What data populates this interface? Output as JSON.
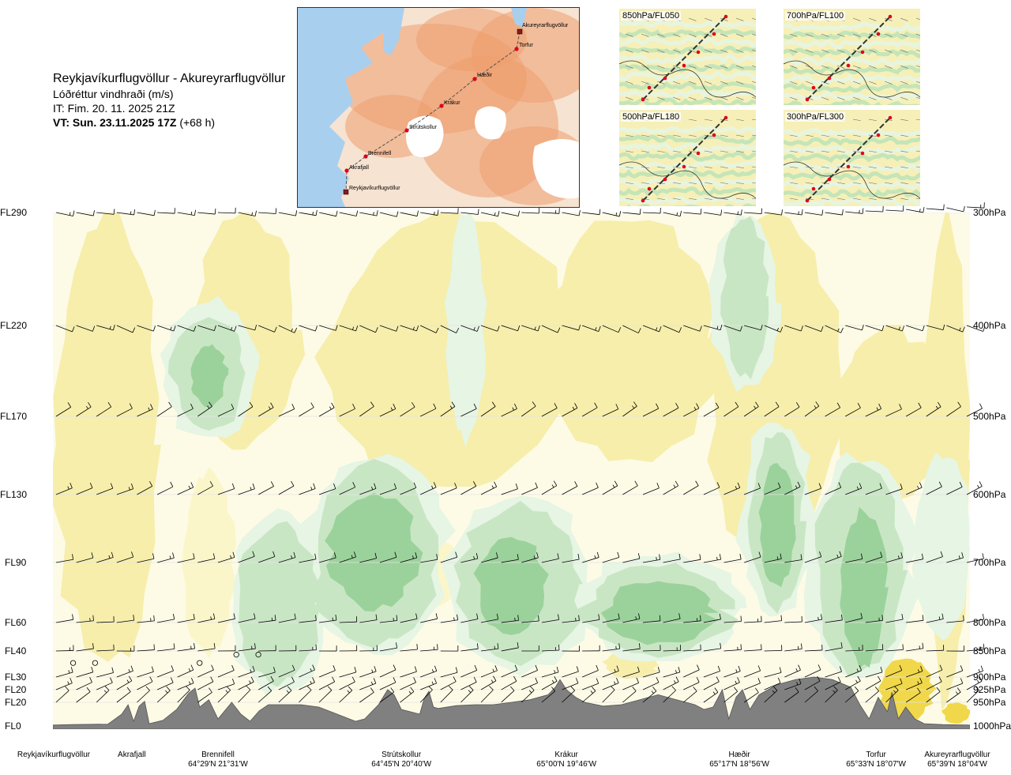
{
  "header": {
    "route": "Reykjavíkurflugvöllur - Akureyrarflugvöllur",
    "parameter": "Lóðréttur vindhraði (m/s)",
    "issue_time": "IT: Fim. 20. 11. 2025 21Z",
    "valid_time": "VT: Sun. 23.11.2025 17Z",
    "lead": "(+68 h)"
  },
  "route_map": {
    "waypoints": [
      {
        "name": "Akureyrarflugvöllur"
      },
      {
        "name": "Torfur"
      },
      {
        "name": "Hæðir"
      },
      {
        "name": "Krákur"
      },
      {
        "name": "Strútskollur"
      },
      {
        "name": "Brennifell"
      },
      {
        "name": "Akrafjall"
      },
      {
        "name": "Reykjavíkurflugvöllur"
      }
    ],
    "colors": {
      "sea": "#a9cfee",
      "land_low": "#f6e3d2",
      "land_high": "#ee9e6e",
      "glacier": "#ffffff",
      "route": "#555555",
      "point": "#e0001a",
      "airport": "#8b1a1a"
    }
  },
  "level_maps": [
    {
      "label": "850hPa/FL050"
    },
    {
      "label": "700hPa/FL100"
    },
    {
      "label": "500hPa/FL180"
    },
    {
      "label": "300hPa/FL300"
    }
  ],
  "chart_data": {
    "type": "heatmap",
    "title": "Reykjavíkurflugvöllur - Akureyrarflugvöllur",
    "subtitle": "Lóðréttur vindhraði (m/s)",
    "y_left_labels": [
      "FL290",
      "FL220",
      "FL170",
      "FL130",
      "FL90",
      "FL60",
      "FL40",
      "FL30",
      "FL20",
      "FL20",
      "FL0"
    ],
    "y_right_labels": [
      "300hPa",
      "400hPa",
      "500hPa",
      "600hPa",
      "700hPa",
      "800hPa",
      "850hPa",
      "900hPa",
      "925hPa",
      "950hPa",
      "1000hPa"
    ],
    "pressure_levels_hpa": [
      300,
      400,
      500,
      600,
      700,
      800,
      850,
      900,
      925,
      950,
      1000
    ],
    "ylim_hpa": [
      1000,
      300
    ],
    "x_points": [
      {
        "name": "Reykjavíkurflugvöllur",
        "coord": "",
        "x": 0.0
      },
      {
        "name": "Akrafjall",
        "coord": "",
        "x": 0.086
      },
      {
        "name": "Brennifell",
        "coord": "64°29'N 21°31'W",
        "x": 0.18
      },
      {
        "name": "Strútskollur",
        "coord": "64°45'N 20°40'W",
        "x": 0.38
      },
      {
        "name": "Krákur",
        "coord": "65°00'N 19°46'W",
        "x": 0.56
      },
      {
        "name": "Hæðir",
        "coord": "65°17'N 18°56'W",
        "x": 0.74
      },
      {
        "name": "Torfur",
        "coord": "65°33'N 18°07'W",
        "x": 0.92
      },
      {
        "name": "Akureyrarflugvöllur",
        "coord": "65°39'N 18°04'W",
        "x": 1.0
      }
    ],
    "xlim": [
      0,
      1
    ],
    "colors": {
      "strong_down": "#9bd29b",
      "down": "#c9e6c4",
      "weak_down": "#e6f5e4",
      "neutral": "#fdfbe6",
      "weak_up": "#fbf6c9",
      "up": "#f6eeaa",
      "strong_up": "#f0d84a",
      "terrain": "#808080",
      "barb": "#000000"
    },
    "terrain_profile_hpa": [
      [
        0.0,
        998
      ],
      [
        0.02,
        997
      ],
      [
        0.06,
        996
      ],
      [
        0.075,
        975
      ],
      [
        0.082,
        955
      ],
      [
        0.088,
        990
      ],
      [
        0.094,
        958
      ],
      [
        0.1,
        948
      ],
      [
        0.105,
        995
      ],
      [
        0.12,
        988
      ],
      [
        0.135,
        965
      ],
      [
        0.148,
        932
      ],
      [
        0.155,
        922
      ],
      [
        0.16,
        960
      ],
      [
        0.17,
        945
      ],
      [
        0.18,
        985
      ],
      [
        0.195,
        950
      ],
      [
        0.205,
        975
      ],
      [
        0.215,
        990
      ],
      [
        0.225,
        968
      ],
      [
        0.235,
        955
      ],
      [
        0.25,
        955
      ],
      [
        0.27,
        955
      ],
      [
        0.29,
        960
      ],
      [
        0.31,
        975
      ],
      [
        0.33,
        990
      ],
      [
        0.34,
        985
      ],
      [
        0.355,
        955
      ],
      [
        0.365,
        925
      ],
      [
        0.372,
        935
      ],
      [
        0.38,
        965
      ],
      [
        0.39,
        970
      ],
      [
        0.4,
        975
      ],
      [
        0.405,
        942
      ],
      [
        0.41,
        928
      ],
      [
        0.415,
        960
      ],
      [
        0.42,
        963
      ],
      [
        0.44,
        957
      ],
      [
        0.46,
        955
      ],
      [
        0.48,
        955
      ],
      [
        0.5,
        950
      ],
      [
        0.52,
        945
      ],
      [
        0.54,
        935
      ],
      [
        0.548,
        920
      ],
      [
        0.553,
        905
      ],
      [
        0.56,
        925
      ],
      [
        0.57,
        940
      ],
      [
        0.58,
        950
      ],
      [
        0.6,
        958
      ],
      [
        0.62,
        955
      ],
      [
        0.64,
        945
      ],
      [
        0.66,
        935
      ],
      [
        0.68,
        945
      ],
      [
        0.7,
        955
      ],
      [
        0.71,
        965
      ],
      [
        0.72,
        960
      ],
      [
        0.73,
        925
      ],
      [
        0.737,
        985
      ],
      [
        0.745,
        940
      ],
      [
        0.752,
        925
      ],
      [
        0.76,
        965
      ],
      [
        0.77,
        935
      ],
      [
        0.78,
        925
      ],
      [
        0.79,
        915
      ],
      [
        0.81,
        905
      ],
      [
        0.83,
        900
      ],
      [
        0.85,
        905
      ],
      [
        0.87,
        920
      ],
      [
        0.88,
        955
      ],
      [
        0.89,
        985
      ],
      [
        0.9,
        940
      ],
      [
        0.91,
        970
      ],
      [
        0.915,
        930
      ],
      [
        0.922,
        985
      ],
      [
        0.93,
        960
      ],
      [
        0.94,
        985
      ],
      [
        0.95,
        995
      ],
      [
        0.97,
        997
      ],
      [
        1.0,
        998
      ]
    ],
    "updraft_patches": [
      {
        "x": [
          0.0,
          0.12
        ],
        "p": [
          300,
          900
        ],
        "kind": "up"
      },
      {
        "x": [
          0.15,
          0.27
        ],
        "p": [
          300,
          540
        ],
        "kind": "up"
      },
      {
        "x": [
          0.29,
          0.57
        ],
        "p": [
          300,
          610
        ],
        "kind": "up"
      },
      {
        "x": [
          0.53,
          0.73
        ],
        "p": [
          300,
          560
        ],
        "kind": "up"
      },
      {
        "x": [
          0.71,
          0.86
        ],
        "p": [
          300,
          700
        ],
        "kind": "up"
      },
      {
        "x": [
          0.85,
          0.97
        ],
        "p": [
          400,
          620
        ],
        "kind": "up"
      },
      {
        "x": [
          0.95,
          1.0
        ],
        "p": [
          300,
          960
        ],
        "kind": "up"
      },
      {
        "x": [
          0.14,
          0.2
        ],
        "p": [
          570,
          860
        ],
        "kind": "weak_up"
      },
      {
        "x": [
          0.36,
          0.45
        ],
        "p": [
          660,
          780
        ],
        "kind": "weak_up"
      },
      {
        "x": [
          0.6,
          0.66
        ],
        "p": [
          850,
          905
        ],
        "kind": "up"
      },
      {
        "x": [
          0.9,
          0.96
        ],
        "p": [
          860,
          990
        ],
        "kind": "strong_up"
      },
      {
        "x": [
          0.97,
          1.0
        ],
        "p": [
          950,
          995
        ],
        "kind": "strong_up"
      }
    ],
    "downdraft_patches": [
      {
        "x": [
          0.13,
          0.21
        ],
        "p": [
          390,
          520
        ],
        "kind": "down"
      },
      {
        "x": [
          0.15,
          0.19
        ],
        "p": [
          420,
          490
        ],
        "kind": "strong_down"
      },
      {
        "x": [
          0.44,
          0.46
        ],
        "p": [
          300,
          520
        ],
        "kind": "weak_down"
      },
      {
        "x": [
          0.2,
          0.29
        ],
        "p": [
          640,
          920
        ],
        "kind": "down"
      },
      {
        "x": [
          0.28,
          0.42
        ],
        "p": [
          560,
          840
        ],
        "kind": "down"
      },
      {
        "x": [
          0.3,
          0.4
        ],
        "p": [
          600,
          780
        ],
        "kind": "strong_down"
      },
      {
        "x": [
          0.44,
          0.58
        ],
        "p": [
          610,
          880
        ],
        "kind": "down"
      },
      {
        "x": [
          0.46,
          0.54
        ],
        "p": [
          660,
          820
        ],
        "kind": "strong_down"
      },
      {
        "x": [
          0.58,
          0.74
        ],
        "p": [
          700,
          860
        ],
        "kind": "down"
      },
      {
        "x": [
          0.6,
          0.72
        ],
        "p": [
          730,
          840
        ],
        "kind": "strong_down"
      },
      {
        "x": [
          0.73,
          0.78
        ],
        "p": [
          300,
          460
        ],
        "kind": "down"
      },
      {
        "x": [
          0.76,
          0.82
        ],
        "p": [
          520,
          780
        ],
        "kind": "down"
      },
      {
        "x": [
          0.77,
          0.81
        ],
        "p": [
          560,
          740
        ],
        "kind": "strong_down"
      },
      {
        "x": [
          0.83,
          0.93
        ],
        "p": [
          560,
          900
        ],
        "kind": "down"
      },
      {
        "x": [
          0.86,
          0.91
        ],
        "p": [
          620,
          880
        ],
        "kind": "strong_down"
      },
      {
        "x": [
          0.95,
          0.99
        ],
        "p": [
          560,
          820
        ],
        "kind": "weak_down"
      }
    ],
    "barb_levels_hpa": [
      300,
      400,
      500,
      600,
      700,
      800,
      850,
      900,
      925,
      950
    ],
    "barb_count": 46
  }
}
